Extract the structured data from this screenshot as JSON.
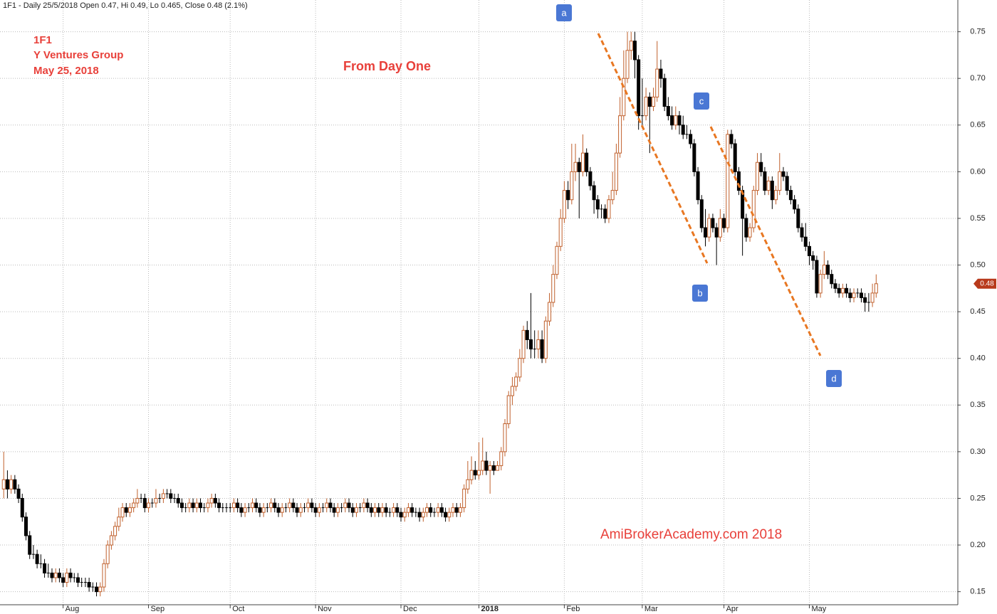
{
  "chart_data": {
    "type": "candlestick",
    "title": "1F1 - Daily 25/5/2018 Open 0.47, Hi 0.49, Lo 0.465, Close 0.48 (2.1%)",
    "annotations": [
      "1F1",
      "Y Ventures Group",
      "May 25, 2018"
    ],
    "subtitle": "From Day One",
    "watermark": "AmiBrokerAcademy.com  2018",
    "point_labels": [
      "a",
      "b",
      "c",
      "d"
    ],
    "up_color": "#c0602c",
    "down_color": "#000000",
    "trendline_color": "#e87722",
    "label_color": "#4a77d4",
    "grid": true,
    "xlim": [
      -1,
      257
    ],
    "ylim": [
      0.136,
      0.784
    ],
    "xticks": [
      {
        "value": 16,
        "label": "Aug"
      },
      {
        "value": 39,
        "label": "Sep"
      },
      {
        "value": 61,
        "label": "Oct"
      },
      {
        "value": 84,
        "label": "Nov"
      },
      {
        "value": 107,
        "label": "Dec"
      },
      {
        "value": 128,
        "label": "2018"
      },
      {
        "value": 151,
        "label": "Feb"
      },
      {
        "value": 172,
        "label": "Mar"
      },
      {
        "value": 194,
        "label": "Apr"
      },
      {
        "value": 217,
        "label": "May"
      }
    ],
    "yticks": [
      0.15,
      {
        "value": 0.2,
        "label": "0.20"
      },
      0.25,
      {
        "value": 0.3,
        "label": "0.30"
      },
      0.35,
      {
        "value": 0.4,
        "label": "0.40"
      },
      0.45,
      {
        "value": 0.5,
        "label": "0.50"
      },
      0.55,
      {
        "value": 0.6,
        "label": "0.60"
      },
      0.65,
      {
        "value": 0.7,
        "label": "0.70"
      },
      0.75
    ],
    "ohlc": [
      [
        0.26,
        0.3,
        0.25,
        0.27
      ],
      [
        0.27,
        0.28,
        0.25,
        0.26
      ],
      [
        0.26,
        0.275,
        0.255,
        0.27
      ],
      [
        0.27,
        0.275,
        0.255,
        0.26
      ],
      [
        0.26,
        0.265,
        0.245,
        0.25
      ],
      [
        0.25,
        0.255,
        0.225,
        0.23
      ],
      [
        0.23,
        0.235,
        0.205,
        0.21
      ],
      [
        0.21,
        0.215,
        0.185,
        0.19
      ],
      [
        0.19,
        0.2,
        0.185,
        0.19
      ],
      [
        0.19,
        0.195,
        0.175,
        0.18
      ],
      [
        0.18,
        0.19,
        0.175,
        0.18
      ],
      [
        0.18,
        0.185,
        0.165,
        0.17
      ],
      [
        0.17,
        0.18,
        0.165,
        0.17
      ],
      [
        0.17,
        0.175,
        0.16,
        0.165
      ],
      [
        0.165,
        0.175,
        0.16,
        0.17
      ],
      [
        0.17,
        0.175,
        0.16,
        0.165
      ],
      [
        0.165,
        0.17,
        0.155,
        0.16
      ],
      [
        0.16,
        0.175,
        0.155,
        0.17
      ],
      [
        0.17,
        0.175,
        0.16,
        0.165
      ],
      [
        0.165,
        0.17,
        0.16,
        0.165
      ],
      [
        0.165,
        0.17,
        0.155,
        0.16
      ],
      [
        0.16,
        0.165,
        0.155,
        0.16
      ],
      [
        0.16,
        0.165,
        0.155,
        0.16
      ],
      [
        0.16,
        0.165,
        0.15,
        0.155
      ],
      [
        0.155,
        0.16,
        0.15,
        0.155
      ],
      [
        0.155,
        0.16,
        0.145,
        0.15
      ],
      [
        0.15,
        0.16,
        0.145,
        0.155
      ],
      [
        0.155,
        0.185,
        0.15,
        0.18
      ],
      [
        0.18,
        0.205,
        0.175,
        0.2
      ],
      [
        0.2,
        0.215,
        0.195,
        0.21
      ],
      [
        0.21,
        0.225,
        0.205,
        0.22
      ],
      [
        0.22,
        0.24,
        0.215,
        0.23
      ],
      [
        0.23,
        0.245,
        0.225,
        0.24
      ],
      [
        0.24,
        0.245,
        0.23,
        0.235
      ],
      [
        0.235,
        0.245,
        0.23,
        0.24
      ],
      [
        0.24,
        0.25,
        0.235,
        0.245
      ],
      [
        0.245,
        0.26,
        0.24,
        0.25
      ],
      [
        0.25,
        0.255,
        0.245,
        0.25
      ],
      [
        0.25,
        0.255,
        0.235,
        0.24
      ],
      [
        0.24,
        0.25,
        0.235,
        0.245
      ],
      [
        0.245,
        0.25,
        0.24,
        0.245
      ],
      [
        0.245,
        0.26,
        0.24,
        0.25
      ],
      [
        0.25,
        0.255,
        0.245,
        0.25
      ],
      [
        0.25,
        0.26,
        0.245,
        0.255
      ],
      [
        0.255,
        0.26,
        0.25,
        0.255
      ],
      [
        0.255,
        0.26,
        0.245,
        0.25
      ],
      [
        0.25,
        0.255,
        0.245,
        0.25
      ],
      [
        0.25,
        0.255,
        0.24,
        0.245
      ],
      [
        0.245,
        0.25,
        0.235,
        0.24
      ],
      [
        0.24,
        0.245,
        0.235,
        0.24
      ],
      [
        0.24,
        0.25,
        0.235,
        0.245
      ],
      [
        0.245,
        0.25,
        0.235,
        0.24
      ],
      [
        0.24,
        0.25,
        0.235,
        0.245
      ],
      [
        0.245,
        0.25,
        0.235,
        0.24
      ],
      [
        0.24,
        0.245,
        0.235,
        0.24
      ],
      [
        0.24,
        0.25,
        0.235,
        0.245
      ],
      [
        0.245,
        0.255,
        0.24,
        0.25
      ],
      [
        0.25,
        0.255,
        0.24,
        0.245
      ],
      [
        0.245,
        0.25,
        0.235,
        0.24
      ],
      [
        0.24,
        0.245,
        0.235,
        0.24
      ],
      [
        0.24,
        0.245,
        0.235,
        0.24
      ],
      [
        0.24,
        0.245,
        0.235,
        0.24
      ],
      [
        0.24,
        0.25,
        0.235,
        0.245
      ],
      [
        0.245,
        0.25,
        0.235,
        0.24
      ],
      [
        0.24,
        0.245,
        0.23,
        0.235
      ],
      [
        0.235,
        0.245,
        0.23,
        0.24
      ],
      [
        0.24,
        0.245,
        0.235,
        0.24
      ],
      [
        0.24,
        0.25,
        0.235,
        0.245
      ],
      [
        0.245,
        0.25,
        0.235,
        0.24
      ],
      [
        0.24,
        0.245,
        0.23,
        0.235
      ],
      [
        0.235,
        0.245,
        0.23,
        0.24
      ],
      [
        0.24,
        0.245,
        0.235,
        0.24
      ],
      [
        0.24,
        0.25,
        0.235,
        0.245
      ],
      [
        0.245,
        0.25,
        0.235,
        0.24
      ],
      [
        0.24,
        0.245,
        0.23,
        0.235
      ],
      [
        0.235,
        0.245,
        0.23,
        0.24
      ],
      [
        0.24,
        0.245,
        0.235,
        0.24
      ],
      [
        0.24,
        0.25,
        0.235,
        0.245
      ],
      [
        0.245,
        0.25,
        0.235,
        0.24
      ],
      [
        0.24,
        0.245,
        0.23,
        0.235
      ],
      [
        0.235,
        0.245,
        0.23,
        0.24
      ],
      [
        0.24,
        0.245,
        0.235,
        0.24
      ],
      [
        0.24,
        0.25,
        0.235,
        0.245
      ],
      [
        0.245,
        0.25,
        0.235,
        0.24
      ],
      [
        0.24,
        0.245,
        0.23,
        0.235
      ],
      [
        0.235,
        0.245,
        0.23,
        0.24
      ],
      [
        0.24,
        0.245,
        0.235,
        0.24
      ],
      [
        0.24,
        0.25,
        0.235,
        0.245
      ],
      [
        0.245,
        0.25,
        0.235,
        0.24
      ],
      [
        0.24,
        0.245,
        0.23,
        0.235
      ],
      [
        0.235,
        0.245,
        0.23,
        0.24
      ],
      [
        0.24,
        0.245,
        0.235,
        0.24
      ],
      [
        0.24,
        0.25,
        0.235,
        0.245
      ],
      [
        0.245,
        0.25,
        0.235,
        0.24
      ],
      [
        0.24,
        0.245,
        0.23,
        0.235
      ],
      [
        0.235,
        0.245,
        0.23,
        0.24
      ],
      [
        0.24,
        0.245,
        0.235,
        0.24
      ],
      [
        0.24,
        0.25,
        0.235,
        0.245
      ],
      [
        0.245,
        0.25,
        0.235,
        0.24
      ],
      [
        0.24,
        0.245,
        0.23,
        0.235
      ],
      [
        0.235,
        0.245,
        0.23,
        0.24
      ],
      [
        0.24,
        0.245,
        0.23,
        0.235
      ],
      [
        0.235,
        0.245,
        0.23,
        0.24
      ],
      [
        0.24,
        0.245,
        0.23,
        0.235
      ],
      [
        0.235,
        0.24,
        0.23,
        0.235
      ],
      [
        0.235,
        0.245,
        0.23,
        0.24
      ],
      [
        0.24,
        0.245,
        0.23,
        0.235
      ],
      [
        0.235,
        0.24,
        0.225,
        0.23
      ],
      [
        0.23,
        0.24,
        0.225,
        0.235
      ],
      [
        0.235,
        0.245,
        0.23,
        0.24
      ],
      [
        0.24,
        0.245,
        0.23,
        0.235
      ],
      [
        0.235,
        0.24,
        0.23,
        0.235
      ],
      [
        0.235,
        0.24,
        0.225,
        0.23
      ],
      [
        0.23,
        0.24,
        0.225,
        0.235
      ],
      [
        0.235,
        0.245,
        0.23,
        0.24
      ],
      [
        0.24,
        0.245,
        0.23,
        0.235
      ],
      [
        0.235,
        0.24,
        0.23,
        0.235
      ],
      [
        0.235,
        0.245,
        0.23,
        0.24
      ],
      [
        0.24,
        0.245,
        0.23,
        0.235
      ],
      [
        0.235,
        0.24,
        0.225,
        0.23
      ],
      [
        0.23,
        0.24,
        0.225,
        0.235
      ],
      [
        0.235,
        0.245,
        0.23,
        0.24
      ],
      [
        0.24,
        0.245,
        0.23,
        0.235
      ],
      [
        0.235,
        0.245,
        0.23,
        0.24
      ],
      [
        0.24,
        0.265,
        0.235,
        0.26
      ],
      [
        0.26,
        0.29,
        0.255,
        0.27
      ],
      [
        0.27,
        0.295,
        0.265,
        0.28
      ],
      [
        0.28,
        0.29,
        0.27,
        0.275
      ],
      [
        0.275,
        0.31,
        0.27,
        0.28
      ],
      [
        0.28,
        0.315,
        0.275,
        0.29
      ],
      [
        0.29,
        0.3,
        0.275,
        0.28
      ],
      [
        0.28,
        0.29,
        0.255,
        0.285
      ],
      [
        0.285,
        0.29,
        0.275,
        0.28
      ],
      [
        0.28,
        0.29,
        0.28,
        0.285
      ],
      [
        0.285,
        0.305,
        0.28,
        0.3
      ],
      [
        0.3,
        0.335,
        0.295,
        0.33
      ],
      [
        0.33,
        0.365,
        0.325,
        0.36
      ],
      [
        0.36,
        0.38,
        0.35,
        0.37
      ],
      [
        0.37,
        0.385,
        0.365,
        0.38
      ],
      [
        0.38,
        0.41,
        0.375,
        0.4
      ],
      [
        0.4,
        0.435,
        0.395,
        0.43
      ],
      [
        0.43,
        0.44,
        0.41,
        0.42
      ],
      [
        0.42,
        0.47,
        0.4,
        0.41
      ],
      [
        0.41,
        0.43,
        0.4,
        0.41
      ],
      [
        0.41,
        0.43,
        0.4,
        0.42
      ],
      [
        0.42,
        0.43,
        0.395,
        0.4
      ],
      [
        0.4,
        0.445,
        0.395,
        0.44
      ],
      [
        0.44,
        0.47,
        0.435,
        0.46
      ],
      [
        0.46,
        0.5,
        0.455,
        0.49
      ],
      [
        0.49,
        0.525,
        0.485,
        0.52
      ],
      [
        0.52,
        0.56,
        0.515,
        0.55
      ],
      [
        0.55,
        0.59,
        0.545,
        0.58
      ],
      [
        0.58,
        0.59,
        0.56,
        0.57
      ],
      [
        0.57,
        0.63,
        0.565,
        0.6
      ],
      [
        0.6,
        0.63,
        0.59,
        0.61
      ],
      [
        0.61,
        0.615,
        0.55,
        0.6
      ],
      [
        0.6,
        0.64,
        0.595,
        0.62
      ],
      [
        0.62,
        0.625,
        0.595,
        0.6
      ],
      [
        0.6,
        0.605,
        0.58,
        0.585
      ],
      [
        0.585,
        0.59,
        0.555,
        0.57
      ],
      [
        0.57,
        0.575,
        0.55,
        0.56
      ],
      [
        0.56,
        0.565,
        0.55,
        0.56
      ],
      [
        0.56,
        0.565,
        0.545,
        0.55
      ],
      [
        0.55,
        0.575,
        0.545,
        0.57
      ],
      [
        0.57,
        0.6,
        0.565,
        0.58
      ],
      [
        0.58,
        0.63,
        0.575,
        0.62
      ],
      [
        0.62,
        0.68,
        0.615,
        0.66
      ],
      [
        0.66,
        0.73,
        0.655,
        0.7
      ],
      [
        0.7,
        0.75,
        0.695,
        0.73
      ],
      [
        0.73,
        0.75,
        0.72,
        0.74
      ],
      [
        0.74,
        0.75,
        0.7,
        0.72
      ],
      [
        0.72,
        0.725,
        0.645,
        0.66
      ],
      [
        0.66,
        0.7,
        0.65,
        0.66
      ],
      [
        0.66,
        0.69,
        0.655,
        0.68
      ],
      [
        0.68,
        0.685,
        0.62,
        0.67
      ],
      [
        0.67,
        0.69,
        0.665,
        0.68
      ],
      [
        0.68,
        0.74,
        0.675,
        0.71
      ],
      [
        0.71,
        0.72,
        0.69,
        0.7
      ],
      [
        0.7,
        0.705,
        0.665,
        0.67
      ],
      [
        0.67,
        0.68,
        0.655,
        0.66
      ],
      [
        0.66,
        0.67,
        0.645,
        0.65
      ],
      [
        0.65,
        0.67,
        0.645,
        0.66
      ],
      [
        0.66,
        0.665,
        0.64,
        0.65
      ],
      [
        0.65,
        0.66,
        0.635,
        0.64
      ],
      [
        0.64,
        0.65,
        0.635,
        0.64
      ],
      [
        0.64,
        0.645,
        0.625,
        0.63
      ],
      [
        0.63,
        0.635,
        0.595,
        0.6
      ],
      [
        0.6,
        0.605,
        0.565,
        0.57
      ],
      [
        0.57,
        0.575,
        0.535,
        0.54
      ],
      [
        0.54,
        0.56,
        0.52,
        0.53
      ],
      [
        0.53,
        0.555,
        0.525,
        0.55
      ],
      [
        0.55,
        0.555,
        0.535,
        0.54
      ],
      [
        0.54,
        0.545,
        0.5,
        0.53
      ],
      [
        0.53,
        0.56,
        0.525,
        0.55
      ],
      [
        0.55,
        0.555,
        0.535,
        0.54
      ],
      [
        0.54,
        0.645,
        0.535,
        0.64
      ],
      [
        0.64,
        0.645,
        0.625,
        0.63
      ],
      [
        0.63,
        0.635,
        0.595,
        0.6
      ],
      [
        0.6,
        0.605,
        0.575,
        0.58
      ],
      [
        0.58,
        0.585,
        0.51,
        0.55
      ],
      [
        0.55,
        0.555,
        0.525,
        0.53
      ],
      [
        0.53,
        0.545,
        0.525,
        0.54
      ],
      [
        0.54,
        0.585,
        0.535,
        0.58
      ],
      [
        0.58,
        0.62,
        0.575,
        0.61
      ],
      [
        0.61,
        0.62,
        0.595,
        0.6
      ],
      [
        0.6,
        0.605,
        0.575,
        0.58
      ],
      [
        0.58,
        0.595,
        0.575,
        0.59
      ],
      [
        0.59,
        0.595,
        0.56,
        0.57
      ],
      [
        0.57,
        0.585,
        0.565,
        0.58
      ],
      [
        0.58,
        0.62,
        0.575,
        0.6
      ],
      [
        0.6,
        0.605,
        0.59,
        0.595
      ],
      [
        0.595,
        0.6,
        0.575,
        0.58
      ],
      [
        0.58,
        0.585,
        0.565,
        0.57
      ],
      [
        0.57,
        0.575,
        0.555,
        0.56
      ],
      [
        0.56,
        0.565,
        0.535,
        0.54
      ],
      [
        0.54,
        0.545,
        0.525,
        0.53
      ],
      [
        0.53,
        0.545,
        0.515,
        0.52
      ],
      [
        0.52,
        0.525,
        0.5,
        0.51
      ],
      [
        0.51,
        0.515,
        0.495,
        0.505
      ],
      [
        0.505,
        0.51,
        0.465,
        0.47
      ],
      [
        0.47,
        0.495,
        0.465,
        0.49
      ],
      [
        0.49,
        0.515,
        0.485,
        0.5
      ],
      [
        0.5,
        0.505,
        0.485,
        0.49
      ],
      [
        0.49,
        0.495,
        0.475,
        0.48
      ],
      [
        0.48,
        0.485,
        0.47,
        0.475
      ],
      [
        0.475,
        0.48,
        0.465,
        0.47
      ],
      [
        0.47,
        0.48,
        0.465,
        0.475
      ],
      [
        0.475,
        0.48,
        0.465,
        0.47
      ],
      [
        0.47,
        0.475,
        0.46,
        0.465
      ],
      [
        0.465,
        0.475,
        0.46,
        0.47
      ],
      [
        0.47,
        0.475,
        0.465,
        0.47
      ],
      [
        0.47,
        0.475,
        0.46,
        0.465
      ],
      [
        0.465,
        0.47,
        0.45,
        0.46
      ],
      [
        0.46,
        0.47,
        0.45,
        0.46
      ],
      [
        0.46,
        0.48,
        0.455,
        0.47
      ],
      [
        0.47,
        0.49,
        0.465,
        0.48
      ]
    ]
  }
}
